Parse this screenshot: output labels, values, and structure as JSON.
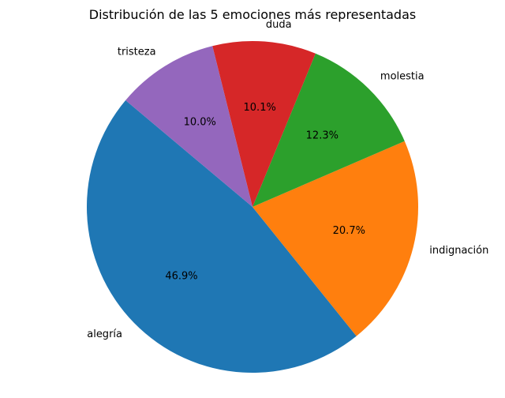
{
  "chart_data": {
    "type": "pie",
    "title": "Distribución de las 5 emociones más representadas",
    "slices": [
      {
        "label": "alegría",
        "value": 46.9,
        "pct_label": "46.9%",
        "color": "#1f77b4"
      },
      {
        "label": "indignación",
        "value": 20.7,
        "pct_label": "20.7%",
        "color": "#ff7f0e"
      },
      {
        "label": "molestia",
        "value": 12.3,
        "pct_label": "12.3%",
        "color": "#2ca02c"
      },
      {
        "label": "duda",
        "value": 10.1,
        "pct_label": "10.1%",
        "color": "#d62728"
      },
      {
        "label": "tristeza",
        "value": 10.0,
        "pct_label": "10.0%",
        "color": "#9467bd"
      }
    ],
    "start_angle_deg": 140,
    "direction": "counterclockwise"
  }
}
